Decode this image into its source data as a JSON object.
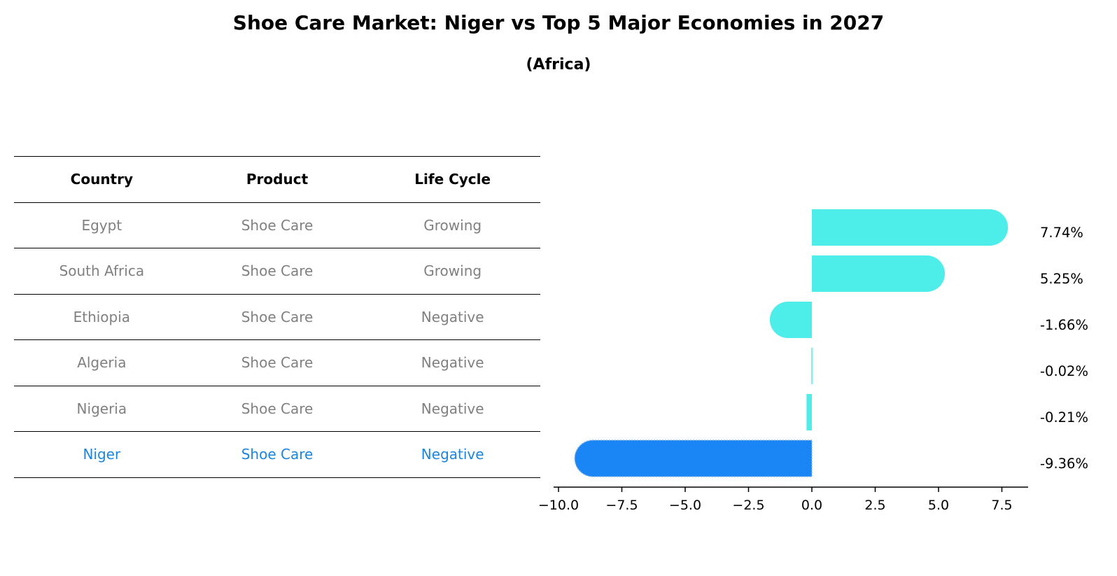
{
  "chart_data": {
    "type": "bar",
    "orientation": "horizontal",
    "title": "Shoe Care Market: Niger vs Top 5 Major Economies in 2027",
    "subtitle": "(Africa)",
    "xlim": [
      -10.2,
      8.6
    ],
    "xticks": [
      -10.0,
      -7.5,
      -5.0,
      -2.5,
      0.0,
      2.5,
      5.0,
      7.5
    ],
    "xtick_labels": [
      "−10.0",
      "−7.5",
      "−5.0",
      "−2.5",
      "0.0",
      "2.5",
      "5.0",
      "7.5"
    ],
    "categories": [
      "Egypt",
      "South Africa",
      "Ethiopia",
      "Algeria",
      "Nigeria",
      "Niger"
    ],
    "values": [
      7.74,
      5.25,
      -1.66,
      -0.02,
      -0.21,
      -9.36
    ],
    "value_labels": [
      "7.74%",
      "5.25%",
      "-1.66%",
      "-0.02%",
      "-0.21%",
      "-9.36%"
    ],
    "highlight_index": 5,
    "colors": {
      "default": "#4dedea",
      "highlight": "#1a86f5"
    }
  },
  "table": {
    "headers": [
      "Country",
      "Product",
      "Life Cycle"
    ],
    "rows": [
      [
        "Egypt",
        "Shoe Care",
        "Growing"
      ],
      [
        "South Africa",
        "Shoe Care",
        "Growing"
      ],
      [
        "Ethiopia",
        "Shoe Care",
        "Negative"
      ],
      [
        "Algeria",
        "Shoe Care",
        "Negative"
      ],
      [
        "Nigeria",
        "Shoe Care",
        "Negative"
      ],
      [
        "Niger",
        "Shoe Care",
        "Negative"
      ]
    ],
    "highlight_color": "#1a86e0"
  }
}
